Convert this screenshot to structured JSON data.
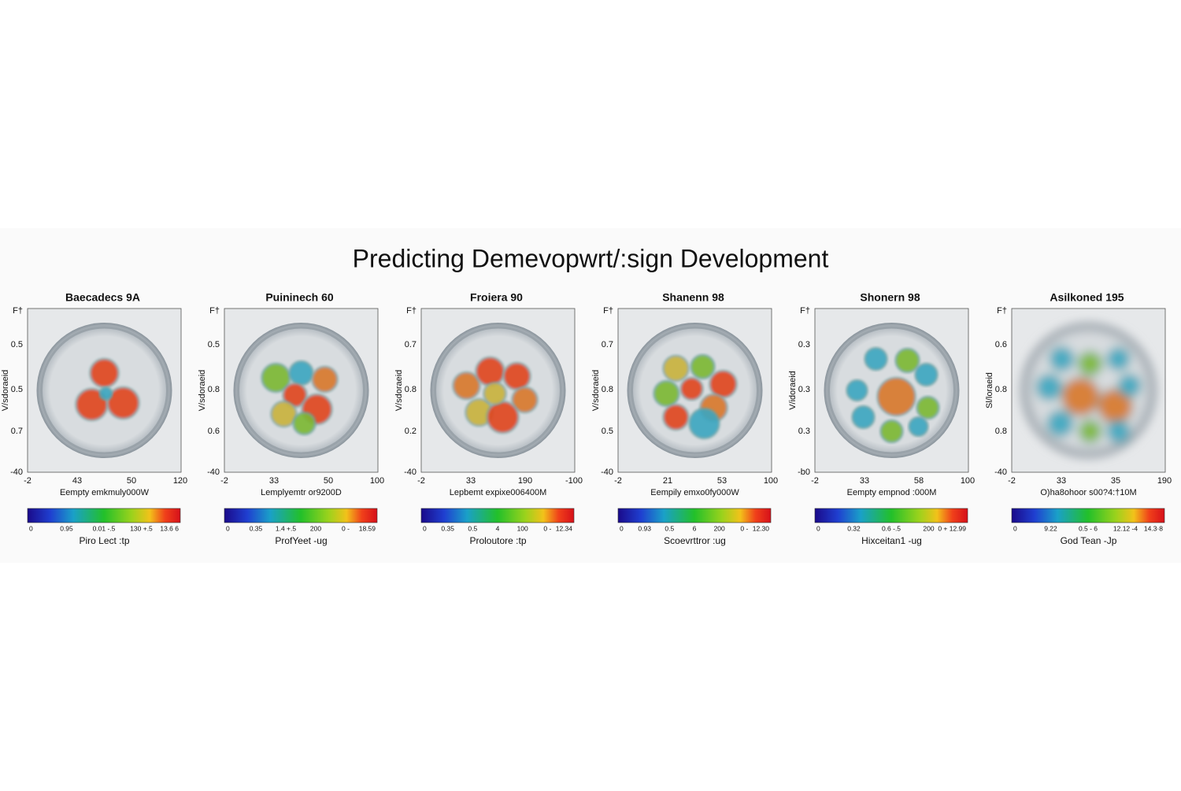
{
  "title": "Predicting Demevopwrt/:sign Development",
  "panels": [
    {
      "title": "Baecadecs 9A",
      "ylabel": "V/sdoraeid",
      "yticks": [
        "F†",
        "0.5",
        "0.5",
        "0.7",
        "-40"
      ],
      "xticks": [
        "-2",
        "43",
        "50",
        "120"
      ],
      "xlabel": "Eempty emkmuly000W",
      "cbar_ticks": [
        "0",
        "0.95",
        "0.01 -.5",
        "130 +.5",
        "13.6 6"
      ],
      "caption": "Piro Lect :tp"
    },
    {
      "title": "Puininech 60",
      "ylabel": "V/sdoraeid",
      "yticks": [
        "F†",
        "0.5",
        "0.8",
        "0.6",
        "-40"
      ],
      "xticks": [
        "-2",
        "33",
        "50",
        "100"
      ],
      "xlabel": "Lemplyemtr or9200D",
      "cbar_ticks": [
        "0",
        "0.35",
        "1.4 +.5",
        "200",
        "0 -",
        "18.59"
      ],
      "caption": "ProfYeet -ug"
    },
    {
      "title": "Froiera 90",
      "ylabel": "V/sdoraeid",
      "yticks": [
        "F†",
        "0.7",
        "0.8",
        "0.2",
        "-40"
      ],
      "xticks": [
        "-2",
        "33",
        "190",
        "-100"
      ],
      "xlabel": "Lepbemt expixe006400M",
      "cbar_ticks": [
        "0",
        "0.35",
        "0.5",
        "4",
        "100",
        "0 -",
        "12.34"
      ],
      "caption": "Proloutore :tp"
    },
    {
      "title": "Shanenn 98",
      "ylabel": "V/sdoraeid",
      "yticks": [
        "F†",
        "0.7",
        "0.8",
        "0.5",
        "-40"
      ],
      "xticks": [
        "-2",
        "21",
        "53",
        "100"
      ],
      "xlabel": "Eempily emxo0fy000W",
      "cbar_ticks": [
        "0",
        "0.93",
        "0.5",
        "6",
        "200",
        "0 -",
        "12.30"
      ],
      "caption": "Scoevrttror :ug"
    },
    {
      "title": "Shonern 98",
      "ylabel": "V/idoraeid",
      "yticks": [
        "F†",
        "0.3",
        "0.3",
        "0.3",
        "-b0"
      ],
      "xticks": [
        "-2",
        "33",
        "58",
        "100"
      ],
      "xlabel": "Eempty empnod :000M",
      "cbar_ticks": [
        "0",
        "0.32",
        "0.6 -.5",
        "200",
        "0 + 12.99"
      ],
      "caption": "Hixceitan1 -ug"
    },
    {
      "title": "Asilkoned 195",
      "ylabel": "Sl/loraeid",
      "yticks": [
        "F†",
        "0.6",
        "0.8",
        "0.8",
        "-40"
      ],
      "xticks": [
        "-2",
        "33",
        "35",
        "190"
      ],
      "xlabel": "O)ha8ohoor s00?4:†10M",
      "cbar_ticks": [
        "0",
        "9.22",
        "0.5 - 6",
        "12.12 -4",
        "14.3·8"
      ],
      "caption": "God Tean -Jp"
    }
  ]
}
